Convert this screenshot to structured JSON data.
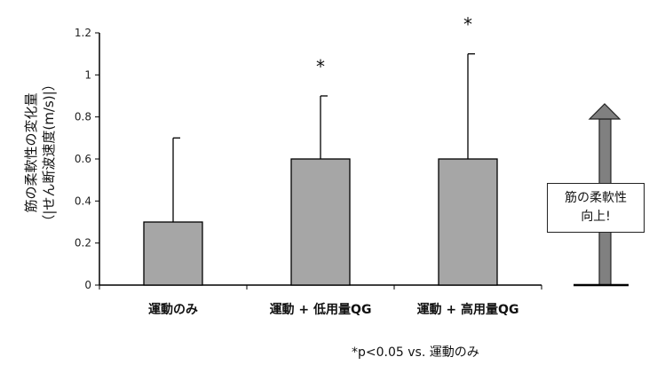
{
  "chart_data": {
    "type": "bar",
    "categories": [
      "運動のみ",
      "運動 + 低用量QG",
      "運動 + 高用量QG"
    ],
    "values": [
      0.3,
      0.6,
      0.6
    ],
    "error_upper": [
      0.4,
      0.3,
      0.5
    ],
    "significance": [
      "",
      "*",
      "*"
    ],
    "ylabel_line1": "筋の柔軟性の変化量",
    "ylabel_line2": "（|せん断波速度(m/s)|）",
    "ylim": [
      0,
      1.2
    ],
    "yticks": [
      "0",
      "0.2",
      "0.4",
      "0.6",
      "0.8",
      "1",
      "1.2"
    ],
    "grid": false,
    "bar_color": "#a6a6a6",
    "footnote": "*p<0.05 vs. 運動のみ"
  },
  "callout": {
    "line1": "筋の柔軟性",
    "line2": "向上!",
    "arrow_color": "#808080"
  }
}
